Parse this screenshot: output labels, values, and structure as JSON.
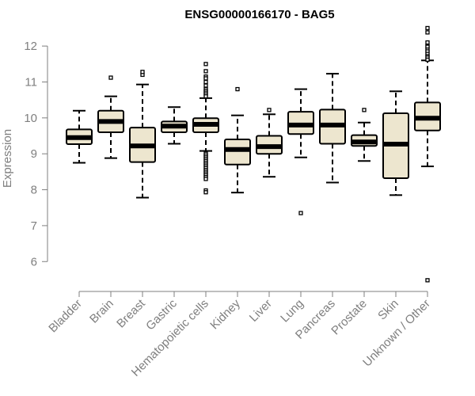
{
  "chart_data": {
    "type": "box",
    "title": "ENSG00000166170 - BAG5",
    "xlabel": "",
    "ylabel": "Expression",
    "ylim": [
      5.3,
      12.4
    ],
    "yticks": [
      6,
      7,
      8,
      9,
      10,
      11,
      12
    ],
    "box_fill": "#ede6cf",
    "box_stroke": "#000000",
    "axis_color": "#7f7f7f",
    "categories": [
      "Bladder",
      "Brain",
      "Breast",
      "Gastric",
      "Hematopoietic cells",
      "Kidney",
      "Liver",
      "Lung",
      "Pancreas",
      "Prostate",
      "Skin",
      "Unknown / Other"
    ],
    "boxes": [
      {
        "name": "Bladder",
        "whisker_low": 8.75,
        "q1": 9.27,
        "median": 9.45,
        "q3": 9.68,
        "whisker_high": 10.2,
        "outliers": []
      },
      {
        "name": "Brain",
        "whisker_low": 8.88,
        "q1": 9.6,
        "median": 9.9,
        "q3": 10.2,
        "whisker_high": 10.6,
        "outliers": [
          11.12
        ]
      },
      {
        "name": "Breast",
        "whisker_low": 7.78,
        "q1": 8.77,
        "median": 9.22,
        "q3": 9.73,
        "whisker_high": 10.93,
        "outliers": [
          11.2,
          11.28
        ]
      },
      {
        "name": "Gastric",
        "whisker_low": 9.28,
        "q1": 9.6,
        "median": 9.77,
        "q3": 9.9,
        "whisker_high": 10.3,
        "outliers": []
      },
      {
        "name": "Hematopoietic cells",
        "whisker_low": 9.08,
        "q1": 9.6,
        "median": 9.82,
        "q3": 9.99,
        "whisker_high": 10.55,
        "outliers": [
          11.5,
          11.3,
          11.15,
          11.1,
          11.0,
          10.9,
          10.8,
          10.75,
          10.7,
          10.65,
          10.6,
          9.0,
          8.95,
          8.9,
          8.85,
          8.8,
          8.75,
          8.7,
          8.65,
          8.6,
          8.55,
          8.5,
          8.45,
          8.4,
          8.35,
          8.3,
          7.98,
          7.93
        ]
      },
      {
        "name": "Kidney",
        "whisker_low": 7.92,
        "q1": 8.7,
        "median": 9.12,
        "q3": 9.4,
        "whisker_high": 10.07,
        "outliers": [
          10.8
        ]
      },
      {
        "name": "Liver",
        "whisker_low": 8.36,
        "q1": 9.0,
        "median": 9.2,
        "q3": 9.5,
        "whisker_high": 10.1,
        "outliers": [
          10.22
        ]
      },
      {
        "name": "Lung",
        "whisker_low": 8.9,
        "q1": 9.55,
        "median": 9.8,
        "q3": 10.17,
        "whisker_high": 10.8,
        "outliers": [
          7.35
        ]
      },
      {
        "name": "Pancreas",
        "whisker_low": 8.2,
        "q1": 9.28,
        "median": 9.8,
        "q3": 10.23,
        "whisker_high": 11.23,
        "outliers": []
      },
      {
        "name": "Prostate",
        "whisker_low": 8.8,
        "q1": 9.22,
        "median": 9.33,
        "q3": 9.52,
        "whisker_high": 9.87,
        "outliers": [
          10.22
        ]
      },
      {
        "name": "Skin",
        "whisker_low": 7.85,
        "q1": 8.32,
        "median": 9.27,
        "q3": 10.13,
        "whisker_high": 10.74,
        "outliers": []
      },
      {
        "name": "Unknown / Other",
        "whisker_low": 8.65,
        "q1": 9.65,
        "median": 9.99,
        "q3": 10.43,
        "whisker_high": 11.6,
        "outliers": [
          12.5,
          12.38,
          12.1,
          12.0,
          11.98,
          11.9,
          11.85,
          11.78,
          11.72,
          11.68,
          11.62,
          5.48
        ]
      }
    ]
  }
}
